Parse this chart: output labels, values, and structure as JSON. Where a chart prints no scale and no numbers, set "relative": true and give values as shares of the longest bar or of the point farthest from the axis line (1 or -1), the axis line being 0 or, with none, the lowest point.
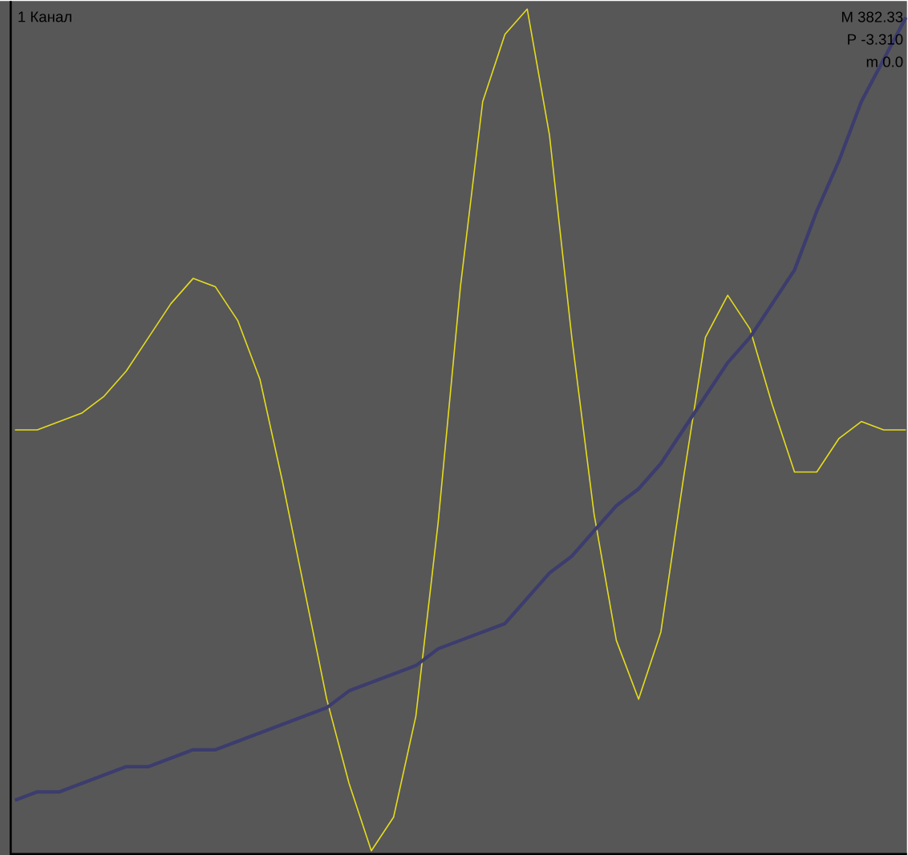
{
  "chart_data": {
    "type": "line",
    "relative": true,
    "annotations": [
      "1 Канал",
      "M 382.33",
      "P -3.310",
      "m 0.0"
    ],
    "categories": [
      null,
      null,
      null,
      null,
      null,
      null,
      null,
      null,
      null,
      null,
      null,
      null,
      null,
      null,
      null,
      null,
      null,
      null,
      null,
      null,
      null,
      null,
      null,
      null,
      null,
      null,
      null,
      null,
      null,
      null,
      null,
      null,
      null,
      null,
      null,
      null,
      null,
      null,
      null,
      null,
      null
    ],
    "series": [
      {
        "color": "#e6dc1e",
        "values": [
          0.5,
          0.5,
          0.51,
          0.52,
          0.54,
          0.57,
          0.61,
          0.65,
          0.68,
          0.67,
          0.63,
          0.56,
          0.44,
          0.31,
          0.18,
          0.08,
          0,
          0.04,
          0.16,
          0.39,
          0.67,
          0.89,
          0.97,
          1,
          0.85,
          0.61,
          0.4,
          0.25,
          0.18,
          0.26,
          0.44,
          0.61,
          0.66,
          0.62,
          0.53,
          0.45,
          0.45,
          0.49,
          0.51,
          0.5,
          0.5
        ]
      },
      {
        "color": "#3c3c6e",
        "values": [
          0.06,
          0.07,
          0.07,
          0.08,
          0.09,
          0.1,
          0.1,
          0.11,
          0.12,
          0.12,
          0.13,
          0.14,
          0.15,
          0.16,
          0.17,
          0.19,
          0.2,
          0.21,
          0.22,
          0.24,
          0.25,
          0.26,
          0.27,
          0.3,
          0.33,
          0.35,
          0.38,
          0.41,
          0.43,
          0.46,
          0.5,
          0.54,
          0.58,
          0.61,
          0.65,
          0.69,
          0.76,
          0.82,
          0.89,
          0.94,
          0.99
        ]
      }
    ]
  }
}
